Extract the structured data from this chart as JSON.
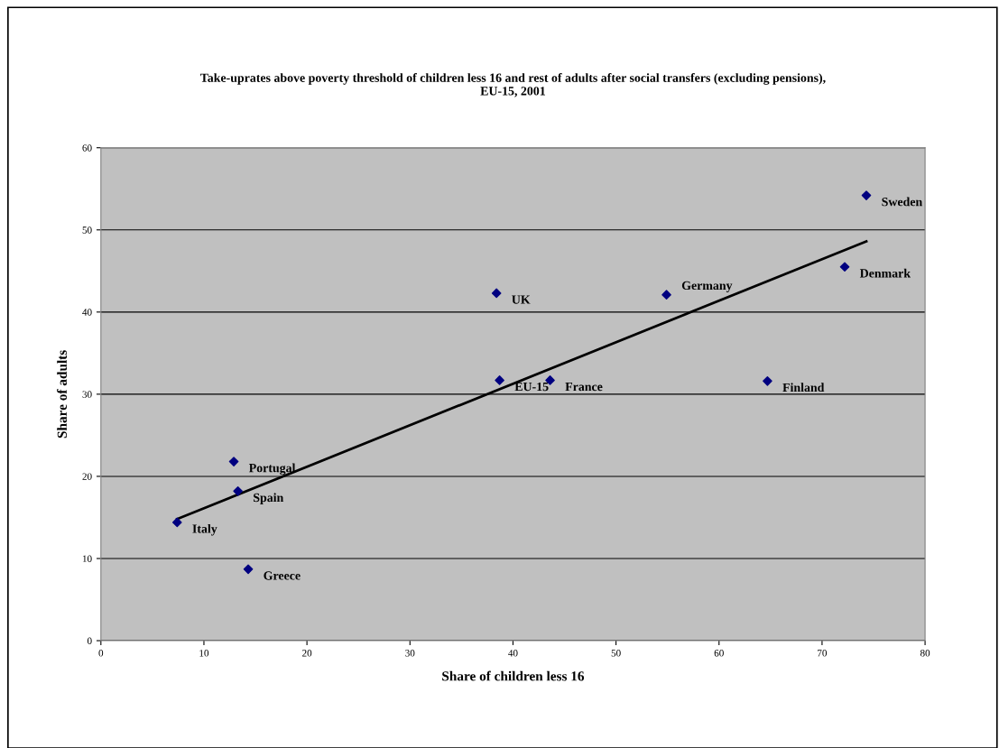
{
  "chart_data": {
    "type": "scatter",
    "title": "Take-uprates above poverty threshold of children less 16 and rest of adults after social transfers (excluding pensions),\nEU-15, 2001",
    "xlabel": "Share of children less 16",
    "ylabel": "Share of adults",
    "series": [
      {
        "color": "#000080",
        "marker": "diamond",
        "x": [
          74.3,
          72.2,
          54.9,
          38.4,
          38.7,
          43.6,
          64.7,
          12.9,
          13.3,
          7.4,
          14.3
        ],
        "values": [
          54.2,
          45.5,
          42.1,
          42.3,
          31.7,
          31.7,
          31.6,
          21.8,
          18.2,
          14.4,
          8.7
        ]
      },
      {
        "type": "line",
        "color": "#000000",
        "marker": "none",
        "line_style": "solid",
        "x": [
          7.4,
          74.3
        ],
        "values": [
          14.8,
          48.6
        ]
      }
    ],
    "annotations": [
      {
        "text": "Sweden",
        "x": 74.3,
        "y": 54.2
      },
      {
        "text": "Denmark",
        "x": 72.2,
        "y": 45.5
      },
      {
        "text": "Germany",
        "x": 54.9,
        "y": 42.1
      },
      {
        "text": "UK",
        "x": 38.4,
        "y": 42.3
      },
      {
        "text": "EU-15",
        "x": 38.7,
        "y": 31.7
      },
      {
        "text": "France",
        "x": 43.6,
        "y": 31.7
      },
      {
        "text": "Finland",
        "x": 64.7,
        "y": 31.6
      },
      {
        "text": "Portugal",
        "x": 12.9,
        "y": 21.8
      },
      {
        "text": "Spain",
        "x": 13.3,
        "y": 18.2
      },
      {
        "text": "Italy",
        "x": 7.4,
        "y": 14.4
      },
      {
        "text": "Greece",
        "x": 14.3,
        "y": 8.7
      }
    ],
    "xlim": [
      0,
      80
    ],
    "xticks": [
      0,
      10,
      20,
      30,
      40,
      50,
      60,
      70,
      80
    ],
    "ylim": [
      0,
      60
    ],
    "yticks": [
      0,
      10,
      20,
      30,
      40,
      50,
      60
    ],
    "grid": "y",
    "legend": false
  }
}
